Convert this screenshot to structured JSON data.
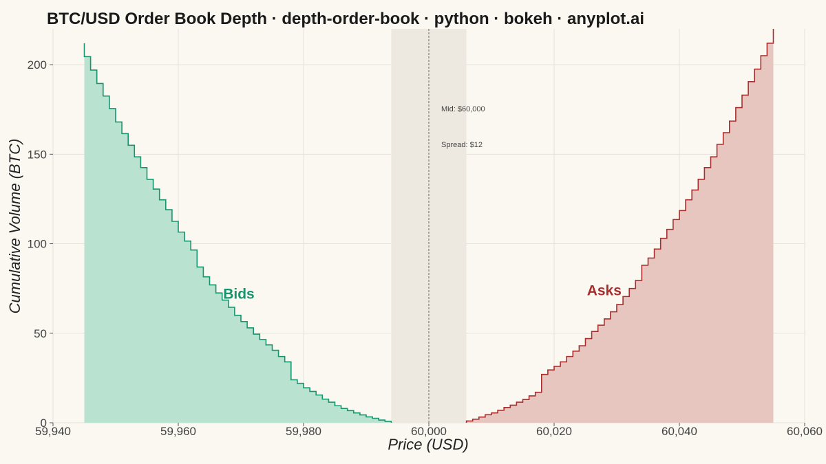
{
  "chart_data": {
    "type": "area",
    "title": "BTC/USD Order Book Depth · depth-order-book · python · bokeh · anyplot.ai",
    "xlabel": "Price (USD)",
    "ylabel": "Cumulative Volume (BTC)",
    "xlim": [
      59940,
      60060
    ],
    "ylim": [
      0,
      220
    ],
    "x_ticks": [
      59940,
      59960,
      59980,
      60000,
      60020,
      60040,
      60060
    ],
    "x_tick_labels": [
      "59,940",
      "59,960",
      "59,980",
      "60,000",
      "60,020",
      "60,040",
      "60,060"
    ],
    "y_ticks": [
      0,
      50,
      100,
      150,
      200
    ],
    "y_tick_labels": [
      "0",
      "50",
      "100",
      "150",
      "200"
    ],
    "grid": true,
    "legend": "none",
    "mid_price": 60000,
    "mid_label": "Mid: $60,000",
    "spread": 12,
    "spread_label": "Spread: $12",
    "spread_band": [
      59994,
      60006
    ],
    "annotations": [
      {
        "text": "Bids",
        "x": 59970,
        "y": 72
      },
      {
        "text": "Asks",
        "x": 60028,
        "y": 74
      }
    ],
    "colors": {
      "bids_line": "#16956E",
      "bids_fill": "#B9E2D1",
      "asks_line": "#A82E2E",
      "asks_fill": "#E8C6C0",
      "spread_band": "#EDE9E1",
      "background": "#FAF8F1",
      "grid": "#E5E2DA"
    },
    "series": [
      {
        "name": "Bids",
        "x": [
          59994,
          59993,
          59992,
          59991,
          59990,
          59989,
          59988,
          59987,
          59986,
          59985,
          59984,
          59983,
          59982,
          59981,
          59980,
          59979,
          59978,
          59977,
          59976,
          59975,
          59974,
          59973,
          59972,
          59971,
          59970,
          59969,
          59968,
          59967,
          59966,
          59965,
          59964,
          59963,
          59962,
          59961,
          59960,
          59959,
          59958,
          59957,
          59956,
          59955,
          59954,
          59953,
          59952,
          59951,
          59950,
          59949,
          59948,
          59947,
          59946,
          59945
        ],
        "y": [
          0.8,
          1.5,
          2.5,
          3.3,
          4.4,
          5.5,
          6.8,
          8.0,
          9.5,
          11.5,
          13.2,
          15.5,
          17.5,
          19.5,
          22.0,
          24.0,
          34.0,
          37.0,
          40.5,
          43.5,
          46.5,
          49.5,
          53.0,
          56.5,
          60.0,
          64.5,
          68.5,
          72.5,
          77.0,
          81.5,
          87.0,
          96.5,
          101.5,
          106.5,
          112.5,
          119.0,
          124.5,
          130.5,
          136.0,
          142.5,
          148.5,
          155.0,
          161.5,
          168.0,
          175.5,
          182.5,
          189.5,
          197.0,
          204.5,
          212.0
        ]
      },
      {
        "name": "Asks",
        "x": [
          60006,
          60007,
          60008,
          60009,
          60010,
          60011,
          60012,
          60013,
          60014,
          60015,
          60016,
          60017,
          60018,
          60019,
          60020,
          60021,
          60022,
          60023,
          60024,
          60025,
          60026,
          60027,
          60028,
          60029,
          60030,
          60031,
          60032,
          60033,
          60034,
          60035,
          60036,
          60037,
          60038,
          60039,
          60040,
          60041,
          60042,
          60043,
          60044,
          60045,
          60046,
          60047,
          60048,
          60049,
          60050,
          60051,
          60052,
          60053,
          60054,
          60055
        ],
        "y": [
          1.0,
          2.0,
          3.2,
          4.5,
          5.5,
          7.0,
          8.5,
          9.8,
          11.5,
          13.0,
          15.0,
          17.0,
          27.0,
          29.5,
          31.5,
          34.0,
          37.0,
          40.0,
          43.0,
          47.0,
          51.0,
          54.5,
          58.0,
          62.0,
          66.0,
          70.5,
          75.0,
          79.5,
          88.0,
          92.0,
          97.0,
          103.0,
          108.0,
          113.5,
          118.5,
          124.5,
          130.0,
          136.0,
          142.5,
          148.5,
          155.5,
          162.0,
          168.5,
          176.0,
          183.0,
          190.5,
          197.5,
          205.0,
          212.0,
          220.0
        ]
      }
    ]
  }
}
